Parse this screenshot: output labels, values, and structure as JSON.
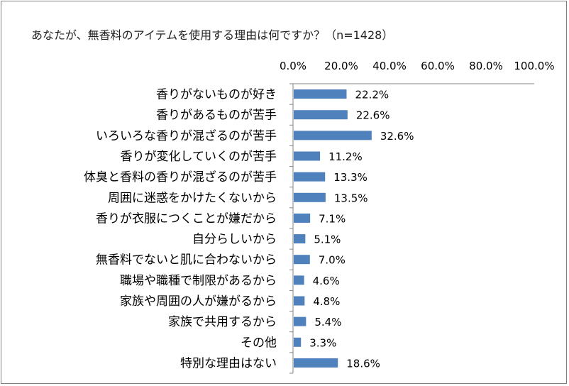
{
  "chart_data": {
    "type": "bar",
    "orientation": "horizontal",
    "title": "あなたが、無香料のアイテムを使用する理由は何ですか？（n=1428）",
    "categories": [
      "香りがないものが好き",
      "香りがあるものが苦手",
      "いろいろな香りが混ざるのが苦手",
      "香りが変化していくのが苦手",
      "体臭と香料の香りが混ざるのが苦手",
      "周囲に迷惑をかけたくないから",
      "香りが衣服につくことが嫌だから",
      "自分らしいから",
      "無香料でないと肌に合わないから",
      "職場や職種で制限があるから",
      "家族や周囲の人が嫌がるから",
      "家族で共用するから",
      "その他",
      "特別な理由はない"
    ],
    "values": [
      22.2,
      22.6,
      32.6,
      11.2,
      13.3,
      13.5,
      7.1,
      5.1,
      7.0,
      4.6,
      4.8,
      5.4,
      3.3,
      18.6
    ],
    "value_labels": [
      "22.2%",
      "22.6%",
      "32.6%",
      "11.2%",
      "13.3%",
      "13.5%",
      "7.1%",
      "5.1%",
      "7.0%",
      "4.6%",
      "4.8%",
      "5.4%",
      "3.3%",
      "18.6%"
    ],
    "xlim": [
      0,
      100
    ],
    "xticks": [
      "0.0%",
      "20.0%",
      "40.0%",
      "60.0%",
      "80.0%",
      "100.0%"
    ],
    "tick_values": [
      0,
      20,
      40,
      60,
      80,
      100
    ],
    "axis_position": "top",
    "grid": false,
    "legend": "none",
    "bar_color": "#4f81bd",
    "axis_color": "#868686"
  }
}
